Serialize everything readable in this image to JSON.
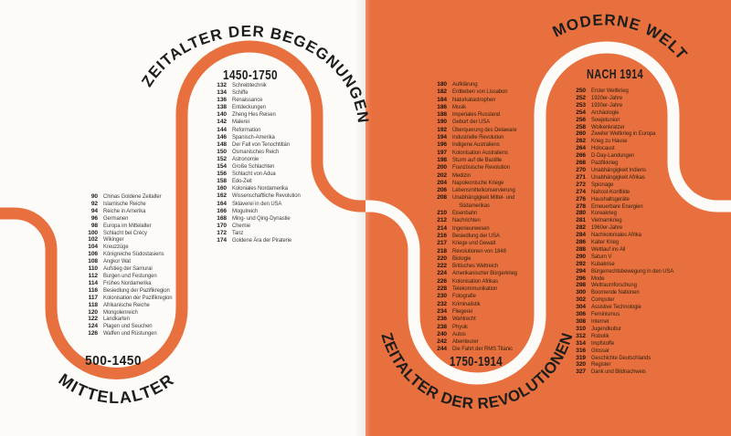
{
  "colors": {
    "orange": "#E7703E",
    "page_white": "#FCFBF7",
    "ink": "#1D1D1B",
    "label_ink_left": "#3E3E3C",
    "label_ink_right": "#33220F"
  },
  "sections": [
    {
      "id": "mittelalter",
      "era_title": "MITTELALTER",
      "date_range": "500-1450",
      "entries": [
        {
          "page": "90",
          "title": "Chinas Goldene Zeitalter"
        },
        {
          "page": "92",
          "title": "Islamische Reiche"
        },
        {
          "page": "94",
          "title": "Reiche in Amerika"
        },
        {
          "page": "96",
          "title": "Germanen"
        },
        {
          "page": "98",
          "title": "Europa im Mittelalter"
        },
        {
          "page": "100",
          "title": "Schlacht bei Crécy"
        },
        {
          "page": "102",
          "title": "Wikinger"
        },
        {
          "page": "104",
          "title": "Kreuzzüge"
        },
        {
          "page": "106",
          "title": "Königreiche Südostasiens"
        },
        {
          "page": "108",
          "title": "Angkor Wat"
        },
        {
          "page": "110",
          "title": "Aufstieg der Samurai"
        },
        {
          "page": "112",
          "title": "Burgen und Festungen"
        },
        {
          "page": "114",
          "title": "Frühes Nordamerika"
        },
        {
          "page": "116",
          "title": "Besiedlung der Pazifikregion"
        },
        {
          "page": "117",
          "title": "Kolonisation der Pazifikregion"
        },
        {
          "page": "118",
          "title": "Afrikanische Reiche"
        },
        {
          "page": "120",
          "title": "Mongolenreich"
        },
        {
          "page": "122",
          "title": "Landkarten"
        },
        {
          "page": "124",
          "title": "Plagen und Seuchen"
        },
        {
          "page": "126",
          "title": "Waffen und Rüstungen"
        }
      ]
    },
    {
      "id": "begegnungen",
      "era_title": "ZEITALTER DER BEGEGNUNGEN",
      "date_range": "1450-1750",
      "entries": [
        {
          "page": "132",
          "title": "Schreibtechnik"
        },
        {
          "page": "134",
          "title": "Schiffe"
        },
        {
          "page": "136",
          "title": "Renaissance"
        },
        {
          "page": "138",
          "title": "Entdeckungen"
        },
        {
          "page": "140",
          "title": "Zheng Hes Reisen"
        },
        {
          "page": "142",
          "title": "Malerei"
        },
        {
          "page": "144",
          "title": "Reformation"
        },
        {
          "page": "146",
          "title": "Spanisch-Amerika"
        },
        {
          "page": "148",
          "title": "Der Fall von Tenochtitlán"
        },
        {
          "page": "150",
          "title": "Osmanisches Reich"
        },
        {
          "page": "152",
          "title": "Astronomie"
        },
        {
          "page": "154",
          "title": "Große Schlachten"
        },
        {
          "page": "156",
          "title": "Schlacht von Adua"
        },
        {
          "page": "158",
          "title": "Edo-Zeit"
        },
        {
          "page": "160",
          "title": "Koloniales Nordamerika"
        },
        {
          "page": "162",
          "title": "Wissenschaftliche Revolution"
        },
        {
          "page": "164",
          "title": "Sklaverei in den USA"
        },
        {
          "page": "166",
          "title": "Mogulreich"
        },
        {
          "page": "168",
          "title": "Ming- und Qing-Dynastie"
        },
        {
          "page": "170",
          "title": "Chemie"
        },
        {
          "page": "172",
          "title": "Tanz"
        },
        {
          "page": "174",
          "title": "Goldene Ära der Piraterie"
        }
      ]
    },
    {
      "id": "revolutionen",
      "era_title": "ZEITALTER DER REVOLUTIONEN",
      "date_range": "1750-1914",
      "entries": [
        {
          "page": "180",
          "title": "Aufklärung"
        },
        {
          "page": "182",
          "title": "Erdbeben von Lissabon"
        },
        {
          "page": "184",
          "title": "Naturkatastrophen"
        },
        {
          "page": "186",
          "title": "Musik"
        },
        {
          "page": "188",
          "title": "Imperiales Russland"
        },
        {
          "page": "190",
          "title": "Geburt der USA"
        },
        {
          "page": "192",
          "title": "Überquerung des Delaware"
        },
        {
          "page": "194",
          "title": "Industrielle Revolution"
        },
        {
          "page": "196",
          "title": "Indigene Australiens"
        },
        {
          "page": "197",
          "title": "Kolonisation Australiens"
        },
        {
          "page": "198",
          "title": "Sturm auf die Bastille"
        },
        {
          "page": "200",
          "title": "Französische Revolution"
        },
        {
          "page": "202",
          "title": "Medizin"
        },
        {
          "page": "204",
          "title": "Napoleonische Kriege"
        },
        {
          "page": "206",
          "title": "Lebensmittelkonservierung"
        },
        {
          "page": "208",
          "title": "Unabhängigkeit Mittel- und Südamerikas"
        },
        {
          "page": "210",
          "title": "Eisenbahn"
        },
        {
          "page": "212",
          "title": "Nachrichten"
        },
        {
          "page": "214",
          "title": "Ingenieurwesen"
        },
        {
          "page": "216",
          "title": "Besiedlung der USA"
        },
        {
          "page": "217",
          "title": "Kriege und Gewalt"
        },
        {
          "page": "218",
          "title": "Revolutionen von 1848"
        },
        {
          "page": "220",
          "title": "Biologie"
        },
        {
          "page": "222",
          "title": "Britisches Weltreich"
        },
        {
          "page": "224",
          "title": "Amerikanischer Bürgerkrieg"
        },
        {
          "page": "226",
          "title": "Kolonisation Afrikas"
        },
        {
          "page": "228",
          "title": "Telekommunikation"
        },
        {
          "page": "230",
          "title": "Fotografie"
        },
        {
          "page": "232",
          "title": "Kriminalistik"
        },
        {
          "page": "234",
          "title": "Fliegerei"
        },
        {
          "page": "236",
          "title": "Wahlrecht"
        },
        {
          "page": "238",
          "title": "Physik"
        },
        {
          "page": "240",
          "title": "Autos"
        },
        {
          "page": "242",
          "title": "Abenteurer"
        },
        {
          "page": "244",
          "title": "Die Fahrt der RMS Titanic"
        }
      ]
    },
    {
      "id": "moderne-welt",
      "era_title": "MODERNE WELT",
      "date_range": "NACH 1914",
      "entries": [
        {
          "page": "250",
          "title": "Erster Weltkrieg"
        },
        {
          "page": "252",
          "title": "1920er-Jahre"
        },
        {
          "page": "253",
          "title": "1930er-Jahre"
        },
        {
          "page": "254",
          "title": "Archäologie"
        },
        {
          "page": "256",
          "title": "Sowjetunion"
        },
        {
          "page": "258",
          "title": "Wolkenkratzer"
        },
        {
          "page": "260",
          "title": "Zweiter Weltkrieg in Europa"
        },
        {
          "page": "262",
          "title": "Krieg zu Hause"
        },
        {
          "page": "264",
          "title": "Holocaust"
        },
        {
          "page": "266",
          "title": "D-Day-Landungen"
        },
        {
          "page": "268",
          "title": "Pazifikkrieg"
        },
        {
          "page": "270",
          "title": "Unabhängigkeit Indiens"
        },
        {
          "page": "271",
          "title": "Unabhängigkeit Afrikas"
        },
        {
          "page": "272",
          "title": "Spionage"
        },
        {
          "page": "274",
          "title": "Nahost-Konflikte"
        },
        {
          "page": "276",
          "title": "Haushaltsgeräte"
        },
        {
          "page": "278",
          "title": "Erneuerbare Energien"
        },
        {
          "page": "280",
          "title": "Koreakrieg"
        },
        {
          "page": "281",
          "title": "Vietnamkrieg"
        },
        {
          "page": "282",
          "title": "1960er-Jahre"
        },
        {
          "page": "284",
          "title": "Nachkoloniales Afrika"
        },
        {
          "page": "286",
          "title": "Kalter Krieg"
        },
        {
          "page": "288",
          "title": "Wettlauf ins All"
        },
        {
          "page": "290",
          "title": "Saturn V"
        },
        {
          "page": "292",
          "title": "Kubakrise"
        },
        {
          "page": "294",
          "title": "Bürgerrechtsbewegung in den USA"
        },
        {
          "page": "296",
          "title": "Mode"
        },
        {
          "page": "298",
          "title": "Weltraumforschung"
        },
        {
          "page": "300",
          "title": "Boomende Nationen"
        },
        {
          "page": "302",
          "title": "Computer"
        },
        {
          "page": "304",
          "title": "Assistive Technologie"
        },
        {
          "page": "306",
          "title": "Feminismus"
        },
        {
          "page": "308",
          "title": "Internet"
        },
        {
          "page": "310",
          "title": "Jugendkultur"
        },
        {
          "page": "312",
          "title": "Robotik"
        },
        {
          "page": "314",
          "title": "Impfstoffe"
        },
        {
          "page": "316",
          "title": "Glossar"
        },
        {
          "page": "319",
          "title": "Geschichte Deutschlands"
        },
        {
          "page": "320",
          "title": "Register"
        },
        {
          "page": "327",
          "title": "Dank und Bildnachweis"
        }
      ]
    }
  ]
}
